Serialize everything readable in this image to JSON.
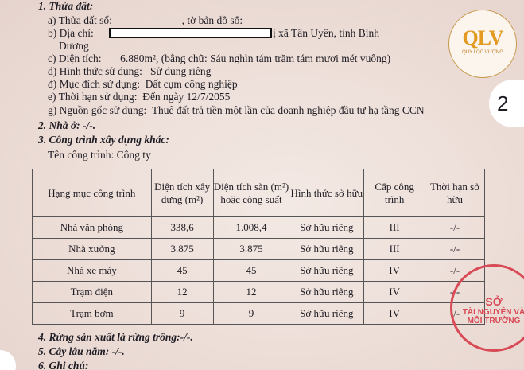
{
  "section1": {
    "title": "1. Thửa đất:",
    "a": "a) Thửa đất số:                          , tờ bản đồ số:",
    "b_label": "b) Địa chỉ:",
    "b_tail": "ị xã Tân Uyên, tỉnh Bình",
    "b_cont": "Dương",
    "c": "c) Diện tích:       6.880m², (bằng chữ: Sáu nghìn tám trăm tám mươi mét vuông)",
    "d": "d) Hình thức sử dụng:   Sử dụng riêng",
    "dd": "đ) Mục đích sử dụng:  Đất cụm công nghiệp",
    "e": "e) Thời hạn sử dụng:  Đến ngày 12/7/2055",
    "g": "g) Nguồn gốc sử dụng:  Thuê đất trả tiền một lần của doanh nghiệp đầu tư hạ tầng CCN"
  },
  "section2": "2. Nhà ở: -/-.",
  "section3": {
    "title": "3. Công trình xây dựng khác:",
    "name": "Tên công trình: Công ty",
    "headers": [
      "Hạng mục công trình",
      "Diện tích xây dựng (m²)",
      "Diện tích sàn (m²) hoặc công suất",
      "Hình thức sở hữu",
      "Cấp công trình",
      "Thời hạn sở hữu"
    ],
    "rows": [
      [
        "Nhà văn phòng",
        "338,6",
        "1.008,4",
        "Sở hữu riêng",
        "III",
        "-/-"
      ],
      [
        "Nhà xưởng",
        "3.875",
        "3.875",
        "Sở hữu riêng",
        "III",
        "-/-"
      ],
      [
        "Nhà xe máy",
        "45",
        "45",
        "Sở hữu riêng",
        "IV",
        "-/-"
      ],
      [
        "Trạm điện",
        "12",
        "12",
        "Sở hữu riêng",
        "IV",
        "-/-"
      ],
      [
        "Trạm bơm",
        "9",
        "9",
        "Sở hữu riêng",
        "IV",
        "-/-"
      ]
    ]
  },
  "section4": "4. Rừng sản xuất là rừng trồng:-/-.",
  "section5": "5. Cây lâu năm:  -/-.",
  "section6": "6. Ghi chú:",
  "logo": {
    "text": "QLV",
    "sub": "QUY LỘC VƯỢNG",
    "color": "#e29a20"
  },
  "page_number": "2",
  "stamp": {
    "line1": "SỞ",
    "line2": "TÀI NGUYÊN VÀ",
    "line3": "MÔI TRƯỜNG",
    "color": "#d84a55"
  }
}
